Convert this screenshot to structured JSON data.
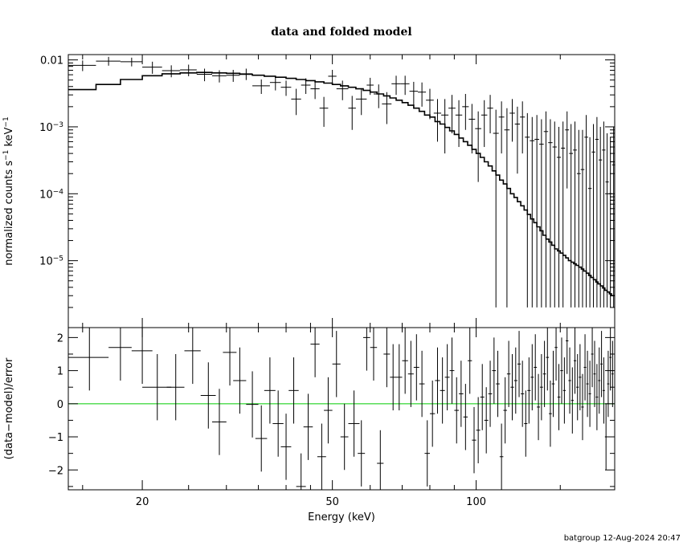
{
  "title": "data and folded model",
  "footer": "batgroup 12-Aug-2024 20:47",
  "chart_data": [
    {
      "type": "scatter",
      "panel": "top",
      "title": "data and folded model",
      "ylabel": "normalized counts s",
      "ylabel_unit": " keV",
      "ylabel_exp": "−1",
      "ylog": true,
      "xlog": true,
      "xlim": [
        14,
        195
      ],
      "ylim": [
        1e-06,
        0.012
      ],
      "yticks": [
        {
          "v": 0.01,
          "label": "0.01"
        },
        {
          "v": 0.001,
          "base": "10",
          "exp": "−3"
        },
        {
          "v": 0.0001,
          "base": "10",
          "exp": "−4"
        },
        {
          "v": 1e-05,
          "base": "10",
          "exp": "−5"
        }
      ],
      "data": {
        "x": [
          15.0,
          17.0,
          19.0,
          21.0,
          23.0,
          25.0,
          27.0,
          29.0,
          31.0,
          33.0,
          35.5,
          38.0,
          40.0,
          42.0,
          44.0,
          46.0,
          48.0,
          50.0,
          52.5,
          55.0,
          57.5,
          60.0,
          62.5,
          65.0,
          68.0,
          71.0,
          74.0,
          77.0,
          80.0,
          83.0,
          86.0,
          89.0,
          92.0,
          95.0,
          98.0,
          101.0,
          104.0,
          107.0,
          110.0,
          113.0,
          116.0,
          119.0,
          122.0,
          125.0,
          128.0,
          131.0,
          134.0,
          137.0,
          140.0,
          143.0,
          146.0,
          149.0,
          152.0,
          155.0,
          158.0,
          161.0,
          164.0,
          167.0,
          170.0,
          173.0,
          176.0,
          179.0,
          182.0,
          185.0,
          188.0,
          191.0,
          194.0
        ],
        "xerr": [
          1.0,
          1.0,
          1.0,
          1.0,
          1.0,
          1.0,
          1.0,
          1.0,
          1.0,
          1.0,
          1.5,
          1.0,
          1.0,
          1.0,
          1.0,
          1.0,
          1.0,
          1.0,
          1.5,
          1.0,
          1.5,
          1.0,
          1.5,
          1.5,
          1.5,
          1.5,
          1.5,
          1.5,
          1.5,
          1.5,
          1.5,
          1.5,
          1.5,
          1.5,
          1.5,
          1.5,
          1.5,
          1.5,
          1.5,
          1.5,
          1.5,
          1.5,
          1.5,
          1.5,
          1.5,
          1.5,
          1.5,
          1.5,
          1.5,
          1.5,
          1.5,
          1.5,
          1.5,
          1.5,
          1.5,
          1.5,
          1.5,
          1.5,
          1.5,
          1.5,
          1.5,
          1.5,
          1.5,
          1.5,
          1.5,
          1.5,
          1.5
        ],
        "y": [
          0.0083,
          0.0096,
          0.0094,
          0.0078,
          0.0069,
          0.0071,
          0.0061,
          0.0058,
          0.0059,
          0.0062,
          0.0041,
          0.0046,
          0.0039,
          0.0026,
          0.0042,
          0.0037,
          0.0019,
          0.0057,
          0.0037,
          0.0019,
          0.0026,
          0.0042,
          0.0031,
          0.0022,
          0.0044,
          0.0044,
          0.0034,
          0.0033,
          0.0025,
          0.0016,
          0.0015,
          0.0019,
          0.0015,
          0.002,
          0.0013,
          0.00094,
          0.0015,
          0.0019,
          0.0008,
          0.0014,
          0.0009,
          0.0016,
          0.0011,
          0.0014,
          0.0007,
          0.00062,
          0.00065,
          0.00055,
          0.00085,
          0.00058,
          0.0005,
          0.00035,
          0.00048,
          0.0009,
          0.0004,
          0.00045,
          0.0002,
          0.00023,
          0.0007,
          0.00012,
          0.00042,
          0.00065,
          0.00032,
          0.00045,
          0.00015,
          0.0001,
          0.00027
        ],
        "ylo": [
          0.0068,
          0.0082,
          0.008,
          0.0062,
          0.0055,
          0.0057,
          0.0048,
          0.0046,
          0.0047,
          0.005,
          0.0031,
          0.0035,
          0.0029,
          0.0015,
          0.0031,
          0.0026,
          0.001,
          0.0043,
          0.0025,
          0.0009,
          0.0015,
          0.003,
          0.0019,
          0.0011,
          0.003,
          0.003,
          0.0021,
          0.002,
          0.0013,
          0.0006,
          0.0004,
          0.0008,
          0.0005,
          0.0009,
          0.0004,
          0.00015,
          0.0005,
          0.0008,
          2e-06,
          0.0004,
          2e-06,
          0.0006,
          0.0002,
          0.0004,
          2e-06,
          2e-06,
          2e-06,
          2e-06,
          2e-06,
          2e-06,
          2e-06,
          2e-06,
          2e-06,
          0.00012,
          2e-06,
          2e-06,
          2e-06,
          2e-06,
          2e-06,
          2e-06,
          2e-06,
          2e-06,
          2e-06,
          2e-06,
          2e-06,
          2e-06,
          2e-06
        ],
        "yhi": [
          0.0098,
          0.0111,
          0.0108,
          0.0094,
          0.0083,
          0.0085,
          0.0074,
          0.007,
          0.0071,
          0.0074,
          0.0051,
          0.0057,
          0.0049,
          0.0037,
          0.0053,
          0.0048,
          0.0028,
          0.0071,
          0.0049,
          0.0029,
          0.0037,
          0.0054,
          0.0043,
          0.0033,
          0.0058,
          0.0058,
          0.0047,
          0.0046,
          0.0037,
          0.0026,
          0.0026,
          0.003,
          0.0025,
          0.0031,
          0.0022,
          0.0017,
          0.0025,
          0.003,
          0.0018,
          0.0024,
          0.0019,
          0.0026,
          0.002,
          0.0024,
          0.0016,
          0.0014,
          0.0015,
          0.0013,
          0.0017,
          0.0013,
          0.0012,
          0.001,
          0.0012,
          0.0017,
          0.0011,
          0.0012,
          0.0009,
          0.0009,
          0.0015,
          0.0007,
          0.0011,
          0.0014,
          0.001,
          0.0012,
          0.0008,
          0.0007,
          0.001
        ]
      },
      "model": {
        "x": [
          14,
          16,
          18,
          20,
          22,
          24,
          26,
          28,
          30,
          32,
          34,
          36,
          38,
          40,
          42,
          44,
          46,
          48,
          50,
          52,
          54,
          56,
          58,
          60,
          62,
          64,
          66,
          68,
          70,
          72,
          74,
          76,
          78,
          80,
          82,
          84,
          86,
          88,
          90,
          92,
          94,
          96,
          98,
          100,
          102,
          104,
          106,
          108,
          110,
          112,
          114,
          116,
          118,
          120,
          122,
          124,
          126,
          128,
          130,
          132,
          134,
          136,
          138,
          140,
          142,
          144,
          146,
          148,
          150,
          152,
          154,
          156,
          158,
          160,
          162,
          164,
          166,
          168,
          170,
          172,
          174,
          176,
          178,
          180,
          182,
          184,
          186,
          188,
          190,
          192,
          195
        ],
        "y": [
          0.0036,
          0.0043,
          0.0051,
          0.0058,
          0.0062,
          0.0064,
          0.0065,
          0.0064,
          0.0063,
          0.0061,
          0.0059,
          0.0057,
          0.0055,
          0.0053,
          0.0051,
          0.0049,
          0.0047,
          0.0045,
          0.0043,
          0.0041,
          0.0039,
          0.0037,
          0.0035,
          0.0033,
          0.0031,
          0.0029,
          0.0027,
          0.0025,
          0.0023,
          0.0021,
          0.0019,
          0.0017,
          0.0015,
          0.0014,
          0.0012,
          0.0011,
          0.00098,
          0.00087,
          0.00077,
          0.00068,
          0.0006,
          0.00053,
          0.00046,
          0.0004,
          0.00035,
          0.0003,
          0.00026,
          0.00022,
          0.00019,
          0.00016,
          0.00014,
          0.00012,
          0.0001,
          8.8e-05,
          7.6e-05,
          6.6e-05,
          5.7e-05,
          4.9e-05,
          4.2e-05,
          3.7e-05,
          3.2e-05,
          2.8e-05,
          2.4e-05,
          2.1e-05,
          1.9e-05,
          1.7e-05,
          1.5e-05,
          1.4e-05,
          1.3e-05,
          1.2e-05,
          1.1e-05,
          1e-05,
          9.5e-06,
          9e-06,
          8.5e-06,
          8e-06,
          7.5e-06,
          7e-06,
          6.5e-06,
          6e-06,
          5.6e-06,
          5.2e-06,
          4.8e-06,
          4.5e-06,
          4.2e-06,
          3.9e-06,
          3.6e-06,
          3.4e-06,
          3.2e-06,
          3e-06,
          2.8e-06
        ]
      }
    },
    {
      "type": "scatter",
      "panel": "bottom",
      "xlabel": "Energy (keV)",
      "ylabel": "(data−model)/error",
      "xlog": true,
      "xlim": [
        14,
        195
      ],
      "ylim": [
        -2.6,
        2.3
      ],
      "xticks": [
        {
          "v": 20,
          "label": "20"
        },
        {
          "v": 50,
          "label": "50"
        },
        {
          "v": 100,
          "label": "100"
        }
      ],
      "yticks": [
        {
          "v": 2,
          "label": "2"
        },
        {
          "v": 1,
          "label": "1"
        },
        {
          "v": 0,
          "label": "0"
        },
        {
          "v": -1,
          "label": "−1"
        },
        {
          "v": -2,
          "label": "−2"
        }
      ],
      "zero_line_color": "#00cc00",
      "data": {
        "x": [
          15.5,
          18.0,
          20.0,
          21.5,
          23.5,
          25.5,
          27.5,
          29.0,
          30.5,
          32.0,
          34.0,
          35.5,
          37.0,
          38.5,
          40.0,
          41.5,
          43.0,
          44.5,
          46.0,
          47.5,
          49.0,
          51.0,
          53.0,
          55.5,
          57.5,
          59.0,
          61.0,
          63.0,
          65.0,
          67.0,
          69.0,
          71.0,
          73.0,
          75.0,
          77.0,
          79.0,
          81.0,
          83.0,
          85.0,
          87.0,
          89.0,
          91.0,
          93.0,
          95.0,
          97.0,
          99.0,
          101.0,
          103.0,
          105.0,
          107.0,
          109.0,
          111.0,
          113.0,
          115.0,
          117.0,
          119.0,
          121.0,
          123.0,
          125.0,
          127.0,
          129.0,
          131.0,
          133.0,
          135.0,
          137.0,
          139.0,
          141.0,
          143.0,
          145.0,
          147.0,
          149.0,
          151.0,
          153.0,
          155.0,
          157.0,
          159.0,
          161.0,
          163.0,
          165.0,
          167.0,
          169.0,
          171.0,
          173.0,
          175.0,
          177.0,
          179.0,
          181.0,
          183.0,
          185.0,
          187.0,
          189.0,
          191.0,
          193.0
        ],
        "xerr": [
          1.5,
          1.0,
          1.0,
          1.5,
          1.0,
          1.0,
          1.0,
          1.0,
          1.0,
          1.0,
          1.0,
          1.0,
          1.0,
          1.0,
          1.0,
          1.0,
          1.0,
          1.0,
          1.0,
          1.0,
          1.0,
          1.0,
          1.0,
          1.5,
          1.0,
          1.0,
          1.0,
          1.0,
          1.0,
          1.0,
          1.0,
          1.0,
          1.0,
          1.0,
          1.0,
          1.0,
          1.0,
          1.0,
          1.0,
          1.0,
          1.0,
          1.0,
          1.0,
          1.0,
          1.0,
          1.0,
          1.0,
          1.0,
          1.0,
          1.0,
          1.0,
          1.0,
          1.0,
          1.0,
          1.0,
          1.0,
          1.0,
          1.0,
          1.0,
          1.0,
          1.0,
          1.0,
          1.0,
          1.0,
          1.0,
          1.0,
          1.0,
          1.0,
          1.0,
          1.0,
          1.0,
          1.0,
          1.0,
          1.0,
          1.0,
          1.0,
          1.0,
          1.0,
          1.0,
          1.0,
          1.0,
          1.0,
          1.0,
          1.0,
          1.0,
          1.0,
          1.0,
          1.0,
          1.0,
          1.0,
          1.0,
          1.0,
          1.0
        ],
        "y": [
          1.4,
          1.7,
          1.6,
          0.5,
          0.5,
          1.6,
          0.25,
          -0.55,
          1.55,
          0.7,
          -0.02,
          -1.05,
          0.4,
          -0.6,
          -1.3,
          0.4,
          -2.5,
          -0.7,
          1.8,
          -1.6,
          -0.2,
          1.2,
          -1.0,
          -0.6,
          -1.5,
          2.0,
          1.7,
          -1.8,
          1.5,
          0.8,
          0.8,
          1.3,
          0.9,
          1.1,
          0.6,
          -1.5,
          -0.3,
          0.7,
          0.4,
          0.8,
          1.0,
          -0.2,
          0.3,
          -0.4,
          1.3,
          -1.1,
          -0.8,
          0.2,
          -0.5,
          0.3,
          1.0,
          0.6,
          -1.6,
          -0.2,
          0.9,
          0.5,
          0.7,
          1.2,
          0.3,
          -0.6,
          0.4,
          0.8,
          1.1,
          -0.1,
          0.5,
          0.9,
          1.4,
          -0.3,
          0.6,
          1.7,
          0.2,
          1.0,
          0.4,
          1.9,
          0.7,
          0.1,
          1.3,
          0.5,
          0.8,
          -0.1,
          1.1,
          0.6,
          0.3,
          1.5,
          0.9,
          0.2,
          0.7,
          1.2,
          0.4,
          -1.0,
          0.6,
          1.4,
          0.9
        ],
        "yerr": [
          1.0,
          1.0,
          1.0,
          1.0,
          1.0,
          1.0,
          1.0,
          1.0,
          1.0,
          1.0,
          1.0,
          1.0,
          1.0,
          1.0,
          1.0,
          1.0,
          1.0,
          1.0,
          1.0,
          1.0,
          1.0,
          1.0,
          1.0,
          1.0,
          1.0,
          1.0,
          1.0,
          1.0,
          1.0,
          1.0,
          1.0,
          1.0,
          1.0,
          1.0,
          1.0,
          1.0,
          1.0,
          1.0,
          1.0,
          1.0,
          1.0,
          1.0,
          1.0,
          1.0,
          1.0,
          1.0,
          1.0,
          1.0,
          1.0,
          1.0,
          1.0,
          1.0,
          1.0,
          1.0,
          1.0,
          1.0,
          1.0,
          1.0,
          1.0,
          1.0,
          1.0,
          1.0,
          1.0,
          1.0,
          1.0,
          1.0,
          1.0,
          1.0,
          1.0,
          1.0,
          1.0,
          1.0,
          1.0,
          1.0,
          1.0,
          1.0,
          1.0,
          1.0,
          1.0,
          1.0,
          1.0,
          1.0,
          1.0,
          1.0,
          1.0,
          1.0,
          1.0,
          1.0,
          1.0,
          1.0,
          1.0,
          1.0,
          1.0
        ]
      }
    }
  ]
}
